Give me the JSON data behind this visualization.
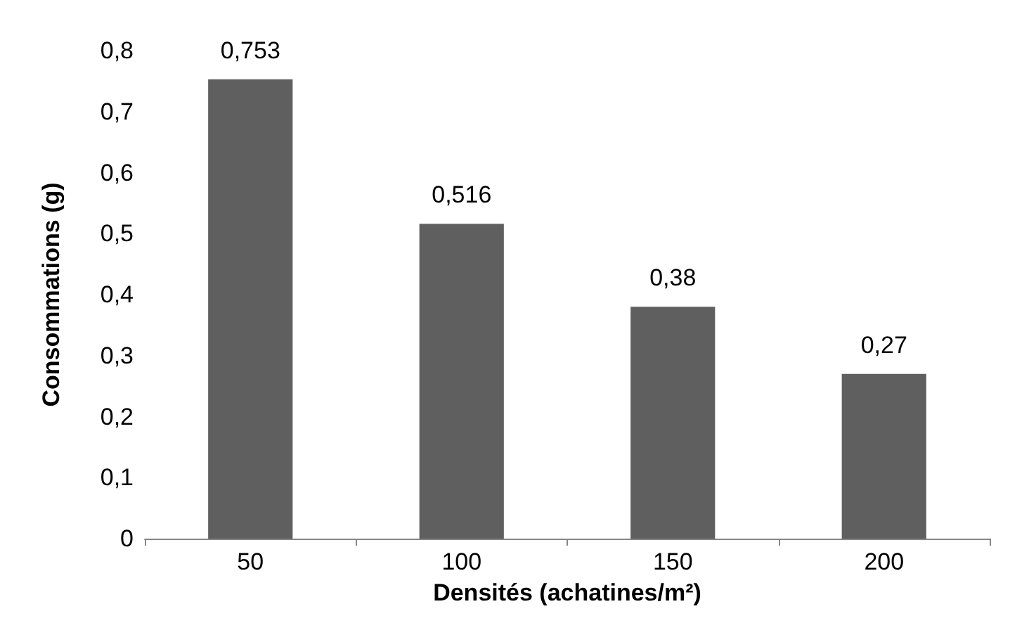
{
  "chart_data": {
    "type": "bar",
    "xlabel": "Densités (achatines/m²)",
    "ylabel": "Consommations (g)",
    "categories": [
      "50",
      "100",
      "150",
      "200"
    ],
    "values": [
      0.753,
      0.516,
      0.38,
      0.27
    ],
    "value_labels": [
      "0,753",
      "0,516",
      "0,38",
      "0,27"
    ],
    "color": "#5f5f5f",
    "ylim": [
      0,
      0.8
    ],
    "yticks": [
      {
        "value": 0,
        "label": "0"
      },
      {
        "value": 0.1,
        "label": "0,1"
      },
      {
        "value": 0.2,
        "label": "0,2"
      },
      {
        "value": 0.3,
        "label": "0,3"
      },
      {
        "value": 0.4,
        "label": "0,4"
      },
      {
        "value": 0.5,
        "label": "0,5"
      },
      {
        "value": 0.6,
        "label": "0,6"
      },
      {
        "value": 0.7,
        "label": "0,7"
      },
      {
        "value": 0.8,
        "label": "0,8"
      }
    ],
    "grid": false
  }
}
